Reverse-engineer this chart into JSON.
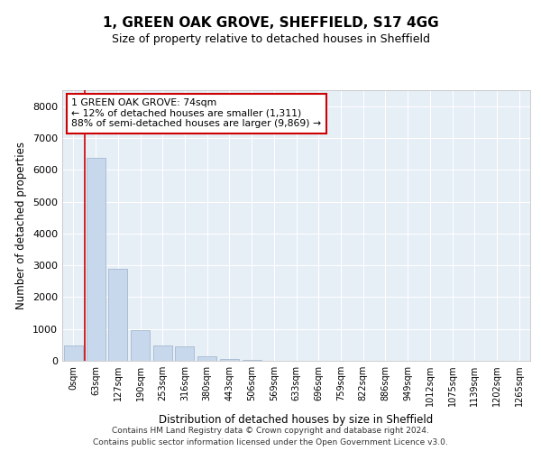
{
  "title": "1, GREEN OAK GROVE, SHEFFIELD, S17 4GG",
  "subtitle": "Size of property relative to detached houses in Sheffield",
  "xlabel": "Distribution of detached houses by size in Sheffield",
  "ylabel": "Number of detached properties",
  "bar_color": "#c8d8ec",
  "bar_edge_color": "#9ab0cc",
  "background_color": "#e6eef6",
  "grid_color": "#ffffff",
  "categories": [
    "0sqm",
    "63sqm",
    "127sqm",
    "190sqm",
    "253sqm",
    "316sqm",
    "380sqm",
    "443sqm",
    "506sqm",
    "569sqm",
    "633sqm",
    "696sqm",
    "759sqm",
    "822sqm",
    "886sqm",
    "949sqm",
    "1012sqm",
    "1075sqm",
    "1139sqm",
    "1202sqm",
    "1265sqm"
  ],
  "values": [
    490,
    6380,
    2900,
    960,
    470,
    450,
    130,
    55,
    15,
    0,
    0,
    0,
    0,
    0,
    0,
    0,
    0,
    0,
    0,
    0,
    0
  ],
  "ylim": [
    0,
    8500
  ],
  "yticks": [
    0,
    1000,
    2000,
    3000,
    4000,
    5000,
    6000,
    7000,
    8000
  ],
  "property_line_x": 0.5,
  "annotation_title": "1 GREEN OAK GROVE: 74sqm",
  "annotation_line1": "← 12% of detached houses are smaller (1,311)",
  "annotation_line2": "88% of semi-detached houses are larger (9,869) →",
  "annotation_box_color": "#ffffff",
  "annotation_box_edge_color": "#cc0000",
  "footer_line1": "Contains HM Land Registry data © Crown copyright and database right 2024.",
  "footer_line2": "Contains public sector information licensed under the Open Government Licence v3.0."
}
